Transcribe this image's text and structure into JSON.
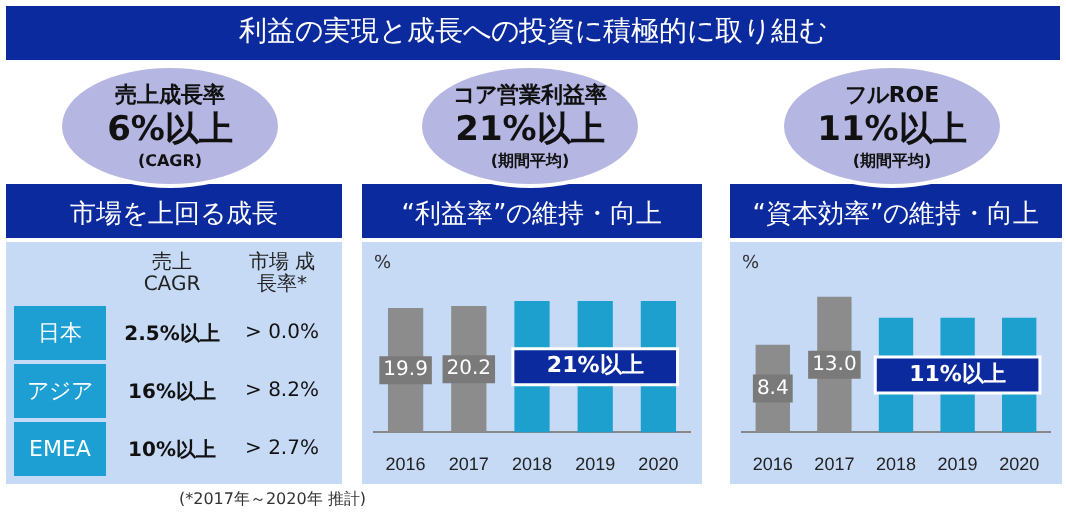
{
  "chart_data": [
    {
      "type": "other",
      "title": "市場を上回る成長",
      "annotations": [
        "利益の実現と成長への投資に積極的に取り組む",
        "売上成長率",
        "6%以上",
        "(CAGR)",
        "売上 CAGR",
        "市場 成長率*",
        "日本",
        "2.5%以上",
        "> 0.0%",
        "アジア",
        "16%以上",
        "> 8.2%",
        "EMEA",
        "10%以上",
        "> 2.7%",
        "(*2017年～2020年 推計)"
      ]
    },
    {
      "type": "bar",
      "title": "“利益率”の維持・向上",
      "ylabel": "%",
      "categories": [
        "2016",
        "2017",
        "2018",
        "2019",
        "2020"
      ],
      "values": [
        19.9,
        20.2,
        21,
        21,
        21
      ],
      "colors": [
        "#8c8c8c",
        "#8c8c8c",
        "#1ea0cf",
        "#1ea0cf",
        "#1ea0cf"
      ],
      "value_labels": [
        "19.9",
        "20.2",
        null,
        null,
        null
      ],
      "tick_labels": "x",
      "grid": false,
      "legend": false,
      "annotations": [
        "コア営業利益率",
        "21%以上",
        "(期間平均)",
        "21%以上"
      ]
    },
    {
      "type": "bar",
      "title": "“資本効率”の維持・向上",
      "ylabel": "%",
      "categories": [
        "2016",
        "2017",
        "2018",
        "2019",
        "2020"
      ],
      "values": [
        8.4,
        13.0,
        11,
        11,
        11
      ],
      "colors": [
        "#8c8c8c",
        "#8c8c8c",
        "#1ea0cf",
        "#1ea0cf",
        "#1ea0cf"
      ],
      "value_labels": [
        "8.4",
        "13.0",
        null,
        null,
        null
      ],
      "tick_labels": "x",
      "grid": false,
      "legend": false,
      "annotations": [
        "フルROE",
        "11%以上",
        "(期間平均)",
        "11%以上"
      ]
    }
  ]
}
